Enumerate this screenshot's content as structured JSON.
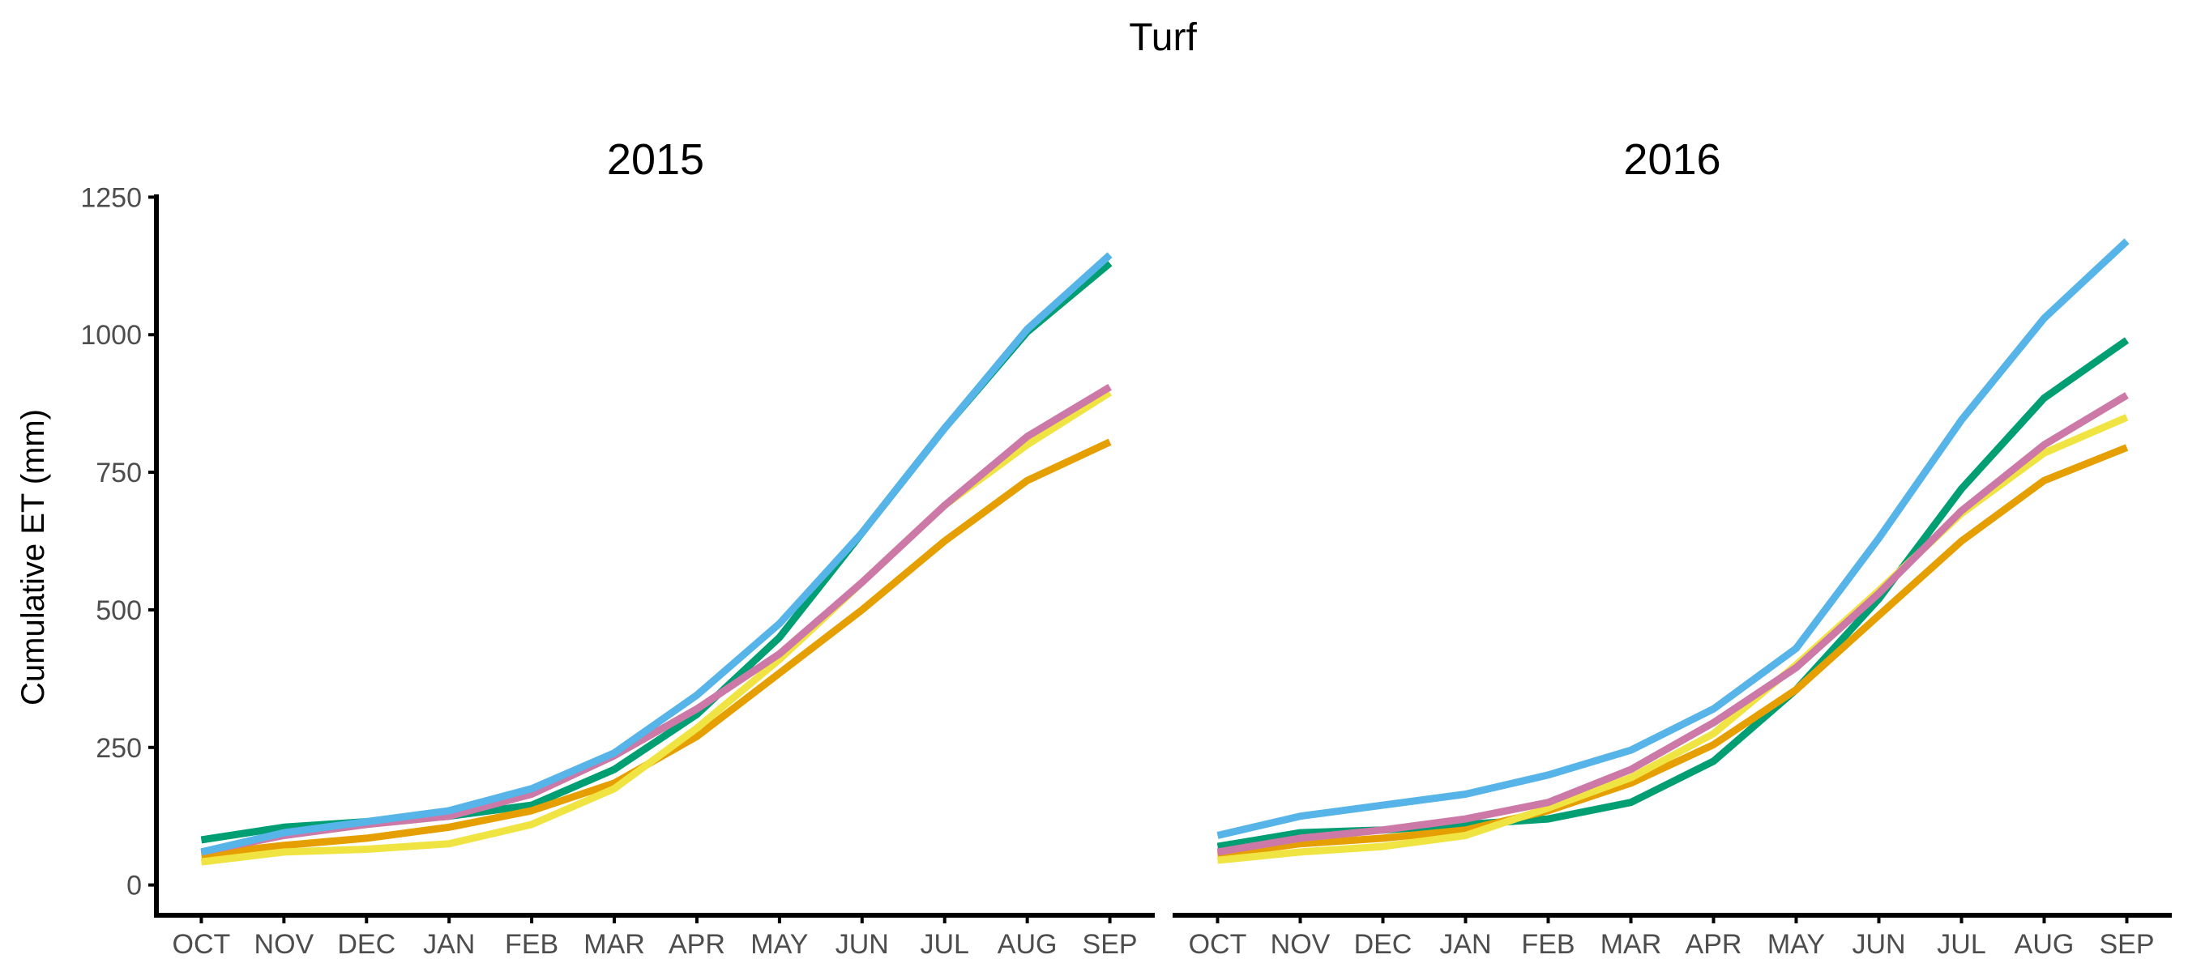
{
  "chart_data": {
    "type": "line",
    "title": "Turf",
    "ylabel": "Cumulative ET (mm)",
    "xlabel": "",
    "ylim": [
      -55,
      1255
    ],
    "yticks": [
      0,
      250,
      500,
      750,
      1000,
      1250
    ],
    "ytick_labels": [
      "0",
      "250",
      "500",
      "750",
      "1000",
      "1250"
    ],
    "categories": [
      "OCT",
      "NOV",
      "DEC",
      "JAN",
      "FEB",
      "MAR",
      "APR",
      "MAY",
      "JUN",
      "JUL",
      "AUG",
      "SEP"
    ],
    "grid": false,
    "legend": "none",
    "panels": [
      {
        "title": "2015",
        "series": [
          {
            "color": "#009E73",
            "values": [
              82,
              105,
              115,
              125,
              145,
              210,
              310,
              450,
              640,
              830,
              1005,
              1130
            ]
          },
          {
            "color": "#E69F00",
            "values": [
              55,
              72,
              85,
              105,
              135,
              185,
              270,
              385,
              500,
              625,
              735,
              805
            ]
          },
          {
            "color": "#F0E442",
            "values": [
              42,
              60,
              65,
              75,
              110,
              175,
              285,
              410,
              550,
              690,
              800,
              895
            ]
          },
          {
            "color": "#CC79A7",
            "values": [
              60,
              90,
              110,
              125,
              165,
              235,
              320,
              420,
              550,
              690,
              815,
              905
            ]
          },
          {
            "color": "#56B4E9",
            "values": [
              60,
              95,
              115,
              135,
              175,
              240,
              345,
              475,
              640,
              830,
              1010,
              1145
            ]
          }
        ]
      },
      {
        "title": "2016",
        "series": [
          {
            "color": "#009E73",
            "values": [
              70,
              95,
              100,
              110,
              120,
              150,
              225,
              355,
              520,
              720,
              885,
              990
            ]
          },
          {
            "color": "#E69F00",
            "values": [
              55,
              75,
              85,
              100,
              135,
              185,
              255,
              355,
              490,
              625,
              735,
              795
            ]
          },
          {
            "color": "#F0E442",
            "values": [
              45,
              60,
              70,
              90,
              140,
              195,
              275,
              400,
              535,
              675,
              785,
              850
            ]
          },
          {
            "color": "#CC79A7",
            "values": [
              60,
              85,
              100,
              120,
              150,
              210,
              295,
              395,
              530,
              680,
              800,
              890
            ]
          },
          {
            "color": "#56B4E9",
            "values": [
              90,
              125,
              145,
              165,
              200,
              245,
              320,
              430,
              630,
              845,
              1030,
              1170
            ]
          }
        ]
      }
    ]
  }
}
